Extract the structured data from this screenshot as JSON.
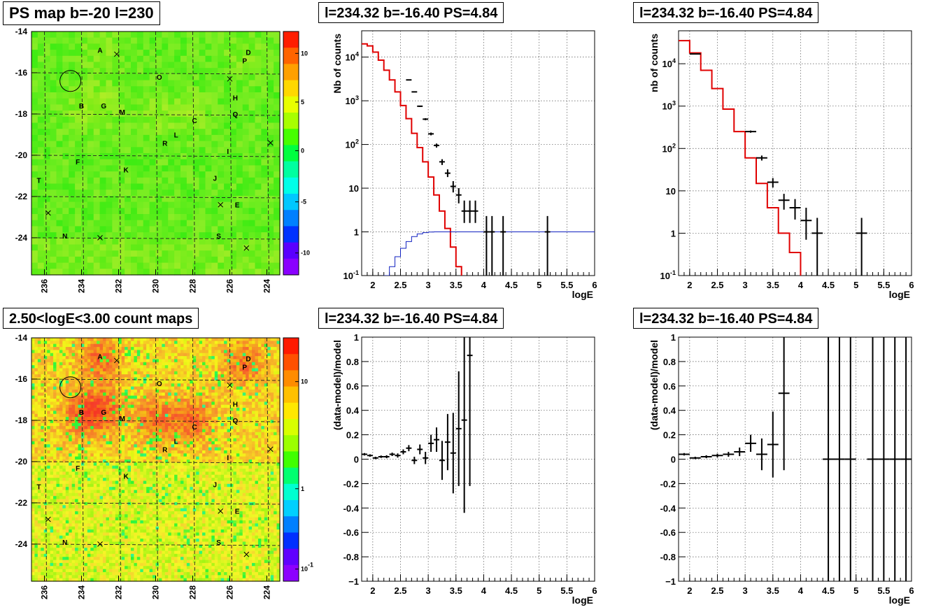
{
  "panels": {
    "map1": {
      "title": "PS map b=-20 l=230"
    },
    "map2": {
      "title": "2.50<logE<3.00 count maps"
    },
    "spec1": {
      "title": "l=234.32 b=-16.40 PS=4.84"
    },
    "spec2": {
      "title": "l=234.32 b=-16.40 PS=4.84"
    },
    "res1": {
      "title": "l=234.32 b=-16.40 PS=4.84"
    },
    "res2": {
      "title": "l=234.32 b=-16.40 PS=4.84"
    }
  },
  "map_common": {
    "x_ticks": [
      236,
      234,
      232,
      230,
      228,
      226,
      224
    ],
    "y_ticks": [
      -14,
      -16,
      -18,
      -20,
      -22,
      -24
    ],
    "xlim": [
      236.7,
      223.3
    ],
    "ylim": [
      -25.8,
      -14
    ],
    "circle": {
      "l": 234.6,
      "b": -16.4
    },
    "labels": [
      {
        "t": "A",
        "l": 233.0,
        "b": -14.9
      },
      {
        "t": "D",
        "l": 225.0,
        "b": -15.0
      },
      {
        "t": "P",
        "l": 225.2,
        "b": -15.4
      },
      {
        "t": "O",
        "l": 229.8,
        "b": -16.2
      },
      {
        "t": "H",
        "l": 225.7,
        "b": -17.2
      },
      {
        "t": "B",
        "l": 234.0,
        "b": -17.6
      },
      {
        "t": "G",
        "l": 232.8,
        "b": -17.6
      },
      {
        "t": "M",
        "l": 231.8,
        "b": -17.9
      },
      {
        "t": "Q",
        "l": 225.7,
        "b": -18.0
      },
      {
        "t": "C",
        "l": 227.9,
        "b": -18.3
      },
      {
        "t": "L",
        "l": 228.9,
        "b": -19.0
      },
      {
        "t": "R",
        "l": 229.5,
        "b": -19.4
      },
      {
        "t": "I",
        "l": 226.1,
        "b": -19.8
      },
      {
        "t": "F",
        "l": 234.2,
        "b": -20.3
      },
      {
        "t": "K",
        "l": 231.6,
        "b": -20.7
      },
      {
        "t": "T",
        "l": 236.3,
        "b": -21.2
      },
      {
        "t": "J",
        "l": 226.8,
        "b": -21.1
      },
      {
        "t": "E",
        "l": 225.6,
        "b": -22.4
      },
      {
        "t": "N",
        "l": 234.9,
        "b": -23.9
      },
      {
        "t": "S",
        "l": 226.6,
        "b": -23.9
      }
    ],
    "crosses": [
      {
        "l": 232.1,
        "b": -15.1
      },
      {
        "l": 226.0,
        "b": -16.3
      },
      {
        "l": 223.8,
        "b": -19.4
      },
      {
        "l": 226.5,
        "b": -22.4
      },
      {
        "l": 235.8,
        "b": -22.8
      },
      {
        "l": 233.0,
        "b": -24.0
      },
      {
        "l": 225.1,
        "b": -24.5
      }
    ]
  },
  "colorbar1": {
    "ticks": [
      "10",
      "5",
      "0",
      "-5",
      "-10"
    ]
  },
  "colorbar2": {
    "ticks": [
      "10",
      "1",
      "10^-1"
    ]
  },
  "chart_data": [
    {
      "type": "line",
      "id": "spec1",
      "title": "l=234.32 b=-16.40 PS=4.84",
      "xlabel": "logE",
      "ylabel": "Nb of counts",
      "xlim": [
        1.8,
        6
      ],
      "ylim": [
        0.1,
        40000
      ],
      "yscale": "log",
      "x_ticks": [
        "2",
        "2.5",
        "3",
        "3.5",
        "4",
        "4.5",
        "5",
        "5.5",
        "6"
      ],
      "y_ticks": [
        "10^-1",
        "1",
        "10",
        "10^2",
        "10^3",
        "10^4"
      ],
      "grid": true,
      "series": [
        {
          "style": "hist-red",
          "bin_width": 0.1,
          "x_start": 1.8,
          "values": [
            20000,
            18000,
            13000,
            8500,
            5000,
            3000,
            1600,
            780,
            390,
            180,
            85,
            40,
            18,
            7,
            3,
            1.2,
            0.45,
            0.16,
            0.07,
            0.07,
            0.07,
            0.07,
            0.07,
            0.07,
            0.07,
            0.07,
            0.07,
            0.07,
            0.07,
            0.07,
            0.07,
            0.07,
            0.07,
            0.07,
            0.07,
            0.07,
            0.07,
            0.07,
            0.07,
            0.07,
            0.07,
            0.07
          ]
        },
        {
          "style": "hist-blue",
          "bin_width": 0.1,
          "x_start": 2.0,
          "values": [
            0.05,
            0.07,
            0.1,
            0.16,
            0.27,
            0.42,
            0.6,
            0.78,
            0.9,
            0.96,
            0.99,
            1.0,
            1.0,
            1.0,
            1.0,
            1.0,
            1.0,
            1.0,
            1.0,
            1.0,
            1.0,
            1.0,
            1.0,
            1.0,
            1.0,
            1.0,
            1.0,
            1.0,
            1.0,
            1.0,
            1.0,
            1.0,
            1.0,
            1.0,
            1.0,
            1.0,
            1.0,
            1.0,
            1.0,
            1.0
          ]
        },
        {
          "style": "points",
          "xerr": 0.05,
          "points": [
            {
              "x": 2.65,
              "y": 3000,
              "lo": 2900,
              "hi": 3100
            },
            {
              "x": 2.75,
              "y": 1600,
              "lo": 1550,
              "hi": 1650
            },
            {
              "x": 2.85,
              "y": 750,
              "lo": 720,
              "hi": 780
            },
            {
              "x": 2.95,
              "y": 380,
              "lo": 360,
              "hi": 400
            },
            {
              "x": 3.05,
              "y": 175,
              "lo": 162,
              "hi": 188
            },
            {
              "x": 3.15,
              "y": 95,
              "lo": 85,
              "hi": 105
            },
            {
              "x": 3.25,
              "y": 40,
              "lo": 34,
              "hi": 46
            },
            {
              "x": 3.35,
              "y": 22,
              "lo": 18,
              "hi": 27
            },
            {
              "x": 3.45,
              "y": 11,
              "lo": 8,
              "hi": 14.5
            },
            {
              "x": 3.55,
              "y": 7,
              "lo": 4.5,
              "hi": 10
            },
            {
              "x": 3.65,
              "y": 3,
              "lo": 1.6,
              "hi": 5.2
            },
            {
              "x": 3.75,
              "y": 3,
              "lo": 1.6,
              "hi": 5.2
            },
            {
              "x": 3.85,
              "y": 3,
              "lo": 1.6,
              "hi": 5.2
            },
            {
              "x": 4.05,
              "y": 1,
              "lo": 0.1,
              "hi": 2.3
            },
            {
              "x": 4.15,
              "y": 1,
              "lo": 0.1,
              "hi": 2.3
            },
            {
              "x": 4.35,
              "y": 1,
              "lo": 0.1,
              "hi": 2.3
            },
            {
              "x": 5.15,
              "y": 1,
              "lo": 0.1,
              "hi": 2.3
            }
          ]
        }
      ]
    },
    {
      "type": "line",
      "id": "spec2",
      "title": "l=234.32 b=-16.40 PS=4.84",
      "xlabel": "logE",
      "ylabel": "nb of counts",
      "xlim": [
        1.8,
        6
      ],
      "ylim": [
        0.1,
        60000
      ],
      "yscale": "log",
      "x_ticks": [
        "2",
        "2.5",
        "3",
        "3.5",
        "4",
        "4.5",
        "5",
        "5.5",
        "6"
      ],
      "y_ticks": [
        "10^-1",
        "1",
        "10",
        "10^2",
        "10^3",
        "10^4"
      ],
      "grid": true,
      "series": [
        {
          "style": "hist-red",
          "bin_width": 0.2,
          "x_start": 1.8,
          "values": [
            35000,
            18000,
            7000,
            2600,
            850,
            250,
            60,
            15,
            4,
            1,
            0.35,
            0.07,
            0.07,
            0.07,
            0.07,
            0.07,
            0.07,
            0.07,
            0.07,
            0.07,
            0.07
          ]
        },
        {
          "style": "points",
          "xerr": 0.1,
          "points": [
            {
              "x": 2.1,
              "y": 17000,
              "lo": 16800,
              "hi": 17200
            },
            {
              "x": 3.1,
              "y": 250,
              "lo": 235,
              "hi": 265
            },
            {
              "x": 3.3,
              "y": 60,
              "lo": 52,
              "hi": 68
            },
            {
              "x": 3.5,
              "y": 16,
              "lo": 12,
              "hi": 20
            },
            {
              "x": 3.7,
              "y": 6,
              "lo": 3.6,
              "hi": 8.5
            },
            {
              "x": 3.9,
              "y": 4,
              "lo": 2.1,
              "hi": 6.4
            },
            {
              "x": 4.1,
              "y": 2,
              "lo": 0.7,
              "hi": 4
            },
            {
              "x": 4.3,
              "y": 1,
              "lo": 0.1,
              "hi": 2.3
            },
            {
              "x": 5.1,
              "y": 1,
              "lo": 0.1,
              "hi": 2.3
            }
          ]
        }
      ]
    },
    {
      "type": "scatter",
      "id": "res1",
      "title": "l=234.32 b=-16.40 PS=4.84",
      "xlabel": "logE",
      "ylabel": "(data-model)/model",
      "xlim": [
        1.8,
        6
      ],
      "ylim": [
        -1,
        1
      ],
      "x_ticks": [
        "2",
        "2.5",
        "3",
        "3.5",
        "4",
        "4.5",
        "5",
        "5.5",
        "6"
      ],
      "y_ticks": [
        "-1",
        "-0.8",
        "-0.6",
        "-0.4",
        "-0.2",
        "0",
        "0.2",
        "0.4",
        "0.6",
        "0.8",
        "1"
      ],
      "grid": true,
      "xerr": 0.05,
      "points": [
        {
          "x": 1.85,
          "y": 0.04,
          "e": 0.01
        },
        {
          "x": 1.95,
          "y": 0.03,
          "e": 0.01
        },
        {
          "x": 2.05,
          "y": 0.01,
          "e": 0.01
        },
        {
          "x": 2.15,
          "y": 0.02,
          "e": 0.01
        },
        {
          "x": 2.25,
          "y": 0.02,
          "e": 0.012
        },
        {
          "x": 2.35,
          "y": 0.04,
          "e": 0.014
        },
        {
          "x": 2.45,
          "y": 0.03,
          "e": 0.017
        },
        {
          "x": 2.55,
          "y": 0.06,
          "e": 0.02
        },
        {
          "x": 2.65,
          "y": 0.09,
          "e": 0.025
        },
        {
          "x": 2.75,
          "y": -0.01,
          "e": 0.03
        },
        {
          "x": 2.85,
          "y": 0.08,
          "e": 0.04
        },
        {
          "x": 2.95,
          "y": 0.01,
          "e": 0.05
        },
        {
          "x": 3.05,
          "y": 0.13,
          "e": 0.07
        },
        {
          "x": 3.15,
          "y": 0.16,
          "e": 0.1
        },
        {
          "x": 3.25,
          "y": -0.01,
          "e": 0.16
        },
        {
          "x": 3.35,
          "y": 0.14,
          "e": 0.23
        },
        {
          "x": 3.45,
          "y": 0.05,
          "e": 0.33
        },
        {
          "x": 3.55,
          "y": 0.25,
          "e": 0.47
        },
        {
          "x": 3.65,
          "y": 0.32,
          "e": 0.76
        },
        {
          "x": 3.75,
          "y": 0.85,
          "e": 1.07
        }
      ]
    },
    {
      "type": "scatter",
      "id": "res2",
      "title": "l=234.32 b=-16.40 PS=4.84",
      "xlabel": "logE",
      "ylabel": "(data-model)/model",
      "xlim": [
        1.8,
        6
      ],
      "ylim": [
        -1,
        1
      ],
      "x_ticks": [
        "2",
        "2.5",
        "3",
        "3.5",
        "4",
        "4.5",
        "5",
        "5.5",
        "6"
      ],
      "y_ticks": [
        "-1",
        "-0.8",
        "-0.6",
        "-0.4",
        "-0.2",
        "0",
        "0.2",
        "0.4",
        "0.6",
        "0.8",
        "1"
      ],
      "grid": true,
      "xerr": 0.1,
      "points": [
        {
          "x": 1.9,
          "y": 0.04,
          "e": 0.01
        },
        {
          "x": 2.1,
          "y": 0.01,
          "e": 0.01
        },
        {
          "x": 2.3,
          "y": 0.02,
          "e": 0.012
        },
        {
          "x": 2.5,
          "y": 0.03,
          "e": 0.015
        },
        {
          "x": 2.7,
          "y": 0.04,
          "e": 0.02
        },
        {
          "x": 2.9,
          "y": 0.06,
          "e": 0.035
        },
        {
          "x": 3.1,
          "y": 0.13,
          "e": 0.07
        },
        {
          "x": 3.3,
          "y": 0.04,
          "e": 0.13
        },
        {
          "x": 3.5,
          "y": 0.12,
          "e": 0.27
        },
        {
          "x": 3.7,
          "y": 0.54,
          "e": 0.63
        },
        {
          "x": 4.5,
          "y": 0.0,
          "e": 1.5
        },
        {
          "x": 4.7,
          "y": 0.0,
          "e": 1.5
        },
        {
          "x": 4.9,
          "y": 0.0,
          "e": 1.5
        },
        {
          "x": 5.3,
          "y": 0.0,
          "e": 1.5
        },
        {
          "x": 5.5,
          "y": 0.0,
          "e": 1.5
        },
        {
          "x": 5.7,
          "y": 0.0,
          "e": 1.5
        },
        {
          "x": 5.9,
          "y": 0.0,
          "e": 1.5
        }
      ]
    }
  ]
}
